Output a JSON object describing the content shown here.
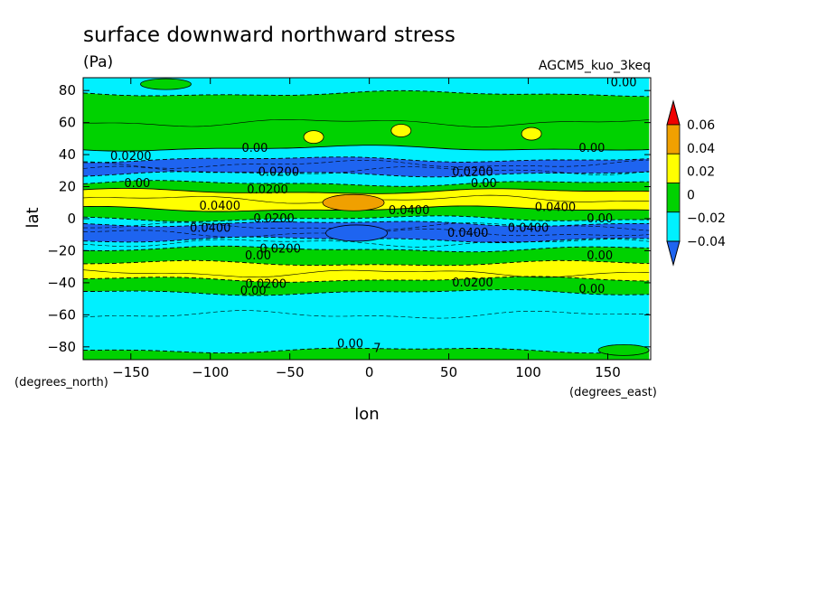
{
  "chart_data": {
    "type": "contour",
    "title": "surface downward northward stress",
    "units": "(Pa)",
    "model": "AGCM5_kuo_3keq",
    "xlabel": "lon",
    "ylabel": "lat",
    "x_unit": "(degrees_east)",
    "y_unit": "(degrees_north)",
    "xlim": [
      -180,
      177
    ],
    "ylim": [
      -88,
      88
    ],
    "x_ticks": [
      -150,
      -100,
      -50,
      0,
      50,
      100,
      150
    ],
    "y_ticks": [
      -80,
      -60,
      -40,
      -20,
      0,
      20,
      40,
      60,
      80
    ],
    "x_tick_labels": [
      "−150",
      "−100",
      "−50",
      "0",
      "50",
      "100",
      "150"
    ],
    "y_tick_labels": [
      "−80",
      "−60",
      "−40",
      "−20",
      "0",
      "20",
      "40",
      "60",
      "80"
    ],
    "colorbar": {
      "levels": [
        -0.04,
        -0.02,
        0,
        0.02,
        0.04,
        0.06
      ],
      "labels": [
        "−0.04",
        "−0.02",
        "0",
        "0.02",
        "0.04",
        "0.06"
      ],
      "colors": [
        "#1e64f0",
        "#00f0ff",
        "#00d200",
        "#ffff00",
        "#f0a000",
        "#f00000"
      ]
    },
    "latitude_bands": [
      {
        "lat": [
          78,
          88
        ],
        "value": "-0.02 to 0",
        "color": "#00f0ff"
      },
      {
        "lat": [
          44,
          78
        ],
        "value": "0 to 0.02",
        "color": "#00d200"
      },
      {
        "lat": [
          37,
          44
        ],
        "value": "-0.02 to 0",
        "color": "#00f0ff"
      },
      {
        "lat": [
          28,
          37
        ],
        "value": "-0.04 to -0.02",
        "color": "#1e64f0"
      },
      {
        "lat": [
          22,
          28
        ],
        "value": "-0.02 to 0",
        "color": "#00f0ff"
      },
      {
        "lat": [
          17,
          22
        ],
        "value": "0 to 0.02",
        "color": "#00d200"
      },
      {
        "lat": [
          6,
          17
        ],
        "value": "0.02 to 0.04",
        "color": "#ffff00"
      },
      {
        "lat": [
          0,
          6
        ],
        "value": "0 to 0.02",
        "color": "#00d200"
      },
      {
        "lat": [
          -3,
          0
        ],
        "value": "-0.02 to 0",
        "color": "#00f0ff"
      },
      {
        "lat": [
          -13,
          -3
        ],
        "value": "-0.04 to -0.02",
        "color": "#1e64f0"
      },
      {
        "lat": [
          -19,
          -13
        ],
        "value": "-0.02 to 0",
        "color": "#00f0ff"
      },
      {
        "lat": [
          -28,
          -19
        ],
        "value": "0 to 0.02",
        "color": "#00d200"
      },
      {
        "lat": [
          -38,
          -28
        ],
        "value": "0.02 to 0.04",
        "color": "#ffff00"
      },
      {
        "lat": [
          -46,
          -38
        ],
        "value": "0 to 0.02",
        "color": "#00d200"
      },
      {
        "lat": [
          -82,
          -46
        ],
        "value": "-0.02 to 0",
        "color": "#00f0ff"
      },
      {
        "lat": [
          -88,
          -82
        ],
        "value": "0 to 0.02",
        "color": "#00d200"
      }
    ],
    "features": [
      {
        "lon": -10,
        "lat": 10,
        "value": "0.04 to 0.06",
        "color": "#f0a000"
      },
      {
        "lon": -8,
        "lat": -9,
        "value": "< -0.04",
        "color": "#1e64f0"
      },
      {
        "lon": -35,
        "lat": 51,
        "value": "0.02 to 0.04",
        "color": "#ffff00"
      },
      {
        "lon": 20,
        "lat": 55,
        "value": "0.02 to 0.04",
        "color": "#ffff00"
      },
      {
        "lon": 102,
        "lat": 53,
        "value": "0.02 to 0.04",
        "color": "#ffff00"
      },
      {
        "lon": -128,
        "lat": 84,
        "value": "0 to 0.02",
        "color": "#00d200"
      },
      {
        "lon": 160,
        "lat": -82,
        "value": "0 to 0.02",
        "color": "#00d200"
      }
    ],
    "contour_labels": [
      {
        "text": "0.00",
        "lon": 160,
        "lat": 85
      },
      {
        "text": "0.00",
        "lon": -72,
        "lat": 44
      },
      {
        "text": "0.00",
        "lon": 140,
        "lat": 44
      },
      {
        "text": "0.0200",
        "lon": -150,
        "lat": 39
      },
      {
        "text": "0.0200",
        "lon": -57,
        "lat": 29
      },
      {
        "text": "0.0200",
        "lon": 65,
        "lat": 29
      },
      {
        "text": "0.00",
        "lon": -146,
        "lat": 22
      },
      {
        "text": "0.00",
        "lon": 72,
        "lat": 22
      },
      {
        "text": "0.0200",
        "lon": -64,
        "lat": 18
      },
      {
        "text": "0.0400",
        "lon": -94,
        "lat": 8
      },
      {
        "text": "0.0400",
        "lon": 25,
        "lat": 5
      },
      {
        "text": "0.0400",
        "lon": 117,
        "lat": 7
      },
      {
        "text": "0.00",
        "lon": 145,
        "lat": 0
      },
      {
        "text": "0.0200",
        "lon": -60,
        "lat": 0
      },
      {
        "text": "0.0400",
        "lon": -100,
        "lat": -6
      },
      {
        "text": "0.0400",
        "lon": 100,
        "lat": -6
      },
      {
        "text": "0.0400",
        "lon": 62,
        "lat": -9
      },
      {
        "text": "0.0200",
        "lon": -56,
        "lat": -19
      },
      {
        "text": "0.00",
        "lon": -70,
        "lat": -23
      },
      {
        "text": "0.00",
        "lon": 145,
        "lat": -23
      },
      {
        "text": "0.0200",
        "lon": -65,
        "lat": -41
      },
      {
        "text": "0.0200",
        "lon": 65,
        "lat": -40
      },
      {
        "text": "0.00",
        "lon": -73,
        "lat": -45
      },
      {
        "text": "0.00",
        "lon": 140,
        "lat": -44
      },
      {
        "text": "0.00",
        "lon": -12,
        "lat": -78
      },
      {
        "text": "7",
        "lon": 5,
        "lat": -81
      }
    ]
  }
}
